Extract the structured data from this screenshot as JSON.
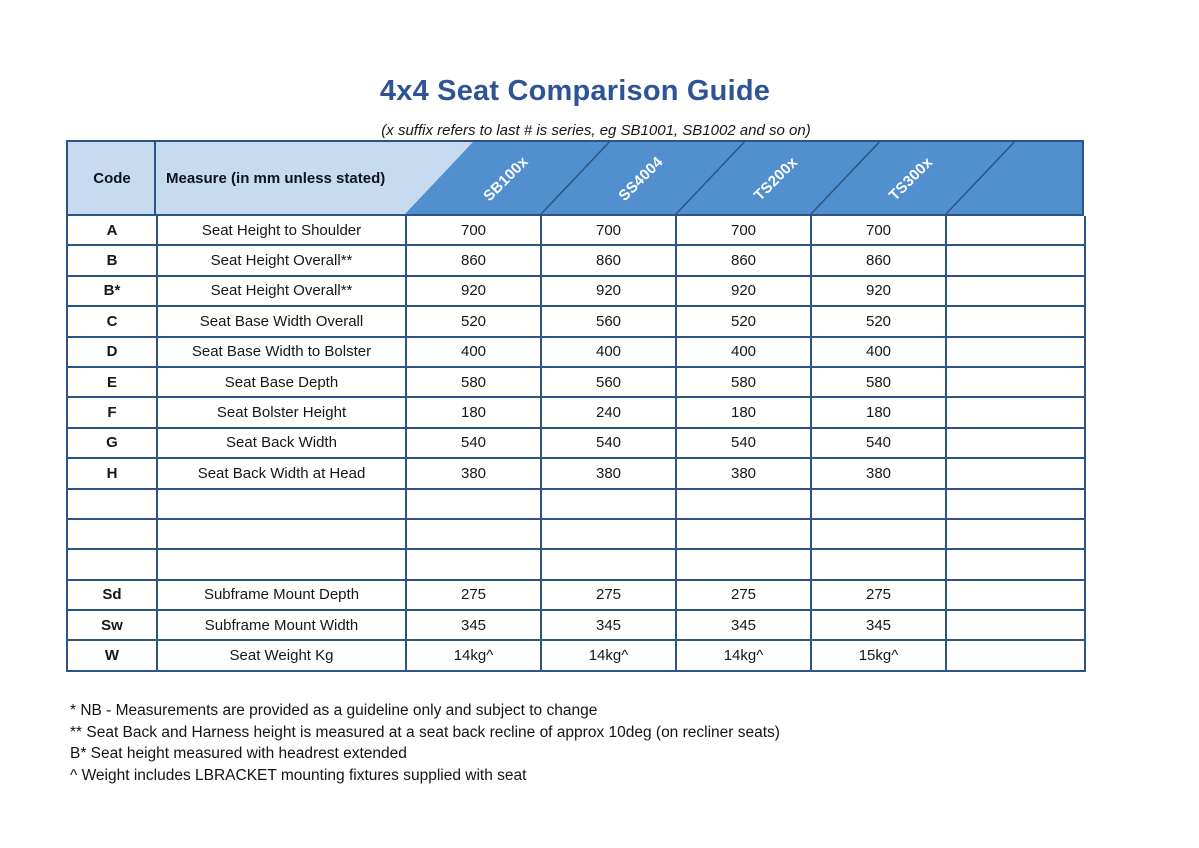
{
  "title": "4x4 Seat Comparison Guide",
  "subtitle": "(x suffix refers to last # is series, eg SB1001, SB1002 and so on)",
  "table": {
    "headers": {
      "code": "Code",
      "measure": "Measure (in mm unless stated)"
    },
    "products": [
      "SB100x",
      "SS4004",
      "TS200x",
      "TS300x"
    ],
    "rows": [
      {
        "code": "A",
        "measure": "Seat Height to Shoulder",
        "values": [
          "700",
          "700",
          "700",
          "700",
          ""
        ]
      },
      {
        "code": "B",
        "measure": "Seat Height Overall**",
        "values": [
          "860",
          "860",
          "860",
          "860",
          ""
        ]
      },
      {
        "code": "B*",
        "measure": "Seat Height Overall**",
        "values": [
          "920",
          "920",
          "920",
          "920",
          ""
        ]
      },
      {
        "code": "C",
        "measure": "Seat Base Width Overall",
        "values": [
          "520",
          "560",
          "520",
          "520",
          ""
        ]
      },
      {
        "code": "D",
        "measure": "Seat Base Width to Bolster",
        "values": [
          "400",
          "400",
          "400",
          "400",
          ""
        ]
      },
      {
        "code": "E",
        "measure": "Seat Base Depth",
        "values": [
          "580",
          "560",
          "580",
          "580",
          ""
        ]
      },
      {
        "code": "F",
        "measure": "Seat Bolster Height",
        "values": [
          "180",
          "240",
          "180",
          "180",
          ""
        ]
      },
      {
        "code": "G",
        "measure": "Seat Back Width",
        "values": [
          "540",
          "540",
          "540",
          "540",
          ""
        ]
      },
      {
        "code": "H",
        "measure": "Seat Back Width at Head",
        "values": [
          "380",
          "380",
          "380",
          "380",
          ""
        ]
      },
      {
        "code": "",
        "measure": "",
        "values": [
          "",
          "",
          "",
          "",
          ""
        ]
      },
      {
        "code": "",
        "measure": "",
        "values": [
          "",
          "",
          "",
          "",
          ""
        ]
      },
      {
        "code": "",
        "measure": "",
        "values": [
          "",
          "",
          "",
          "",
          ""
        ]
      },
      {
        "code": "Sd",
        "measure": "Subframe Mount Depth",
        "values": [
          "275",
          "275",
          "275",
          "275",
          ""
        ]
      },
      {
        "code": "Sw",
        "measure": "Subframe Mount Width",
        "values": [
          "345",
          "345",
          "345",
          "345",
          ""
        ]
      },
      {
        "code": "W",
        "measure": "Seat Weight Kg",
        "values": [
          "14kg^",
          "14kg^",
          "14kg^",
          "15kg^",
          ""
        ]
      }
    ]
  },
  "footnotes": [
    "* NB - Measurements are provided as a guideline only and subject to change",
    "** Seat Back and Harness height is measured at a seat back recline of approx 10deg (on recliner seats)",
    "B* Seat height measured with headrest extended",
    "^ Weight includes LBRACKET mounting fixtures supplied with seat"
  ],
  "colors": {
    "title": "#2e5496",
    "header_light_blue": "#c6daf0",
    "header_blue": "#528fce",
    "border": "#2a5586",
    "text": "#171717"
  }
}
